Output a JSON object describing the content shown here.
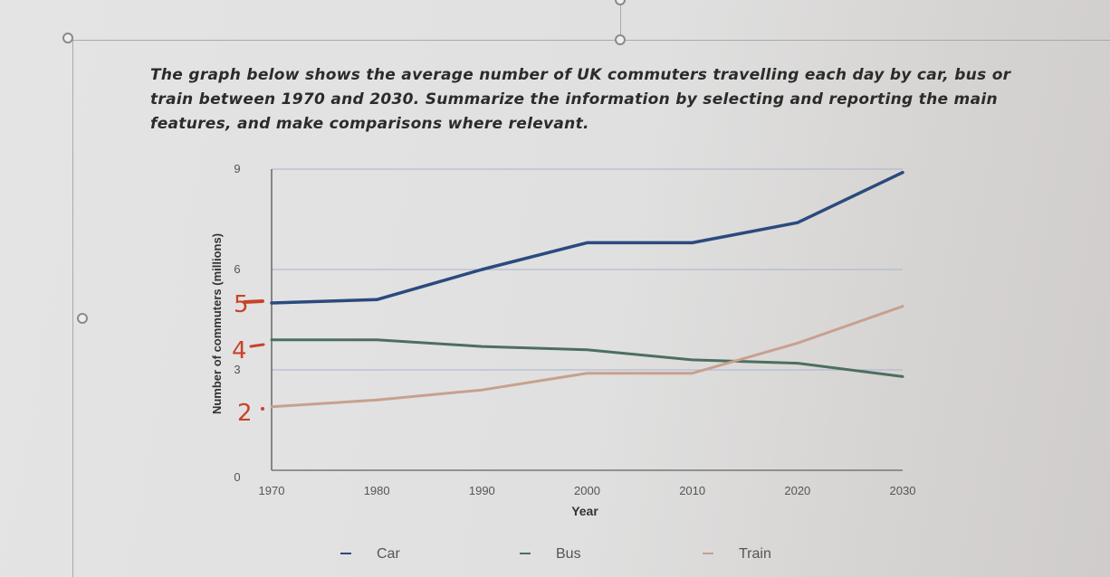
{
  "prompt": {
    "text": "The graph below shows the average number of UK commuters travelling each day by car, bus or train between 1970 and 2030. Summarize the information by selecting and reporting the main features, and make comparisons where relevant."
  },
  "annotations": [
    "5",
    "4",
    "2"
  ],
  "chart_data": {
    "type": "line",
    "title": "",
    "xlabel": "Year",
    "ylabel": "Number of commuters (millions)",
    "x": [
      1970,
      1980,
      1990,
      2000,
      2010,
      2020,
      2030
    ],
    "xticks": [
      "1970",
      "1980",
      "1990",
      "2000",
      "2010",
      "2020",
      "2030"
    ],
    "yticks": [
      "0",
      "3",
      "6",
      "9"
    ],
    "ylim": [
      0,
      9
    ],
    "grid": true,
    "legend_position": "bottom",
    "series": [
      {
        "name": "Car",
        "color": "#2b4a7e",
        "values": [
          5.0,
          5.1,
          6.0,
          6.8,
          6.8,
          7.4,
          8.9
        ]
      },
      {
        "name": "Bus",
        "color": "#4c6f5f",
        "values": [
          3.9,
          3.9,
          3.7,
          3.6,
          3.3,
          3.2,
          2.8
        ]
      },
      {
        "name": "Train",
        "color": "#c8a08f",
        "values": [
          1.9,
          2.1,
          2.4,
          2.9,
          2.9,
          3.8,
          4.9
        ]
      }
    ]
  }
}
